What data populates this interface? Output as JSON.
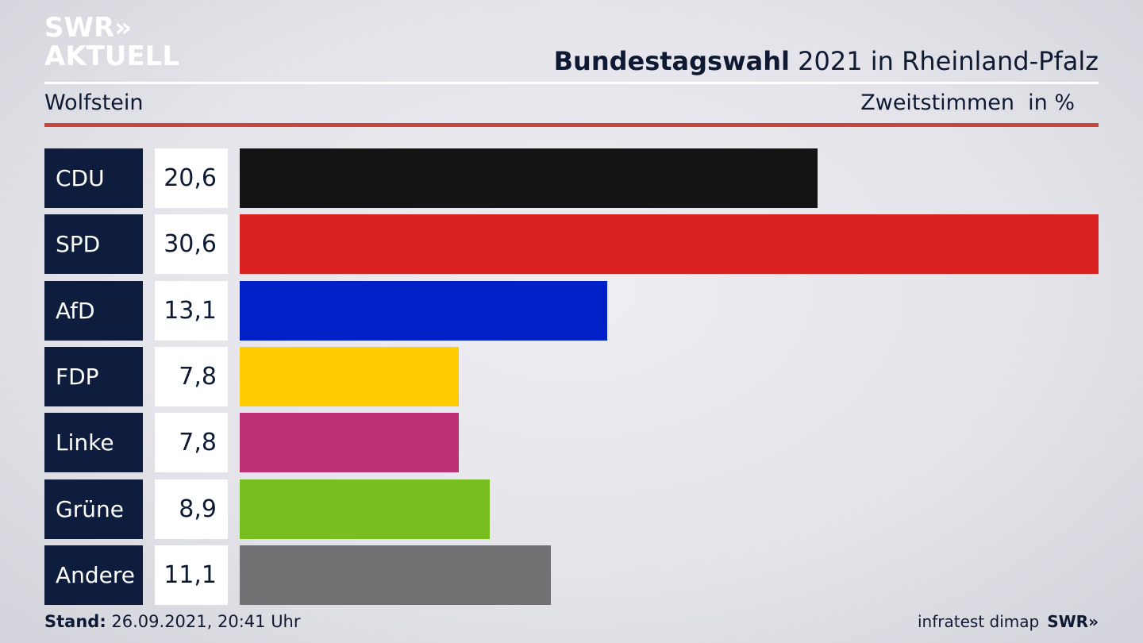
{
  "brand": {
    "logo_line1": "SWR",
    "logo_chevrons": "»",
    "logo_line2": "AKTUELL"
  },
  "header": {
    "title_bold": "Bundestagswahl",
    "title_rest": "2021 in Rheinland-Pfalz",
    "region": "Wolfstein",
    "vote_type": "Zweitstimmen",
    "unit": "in %"
  },
  "colors": {
    "accent_rule": "#c8453c",
    "label_bg": "#0e1c3e"
  },
  "chart_data": {
    "type": "bar",
    "orientation": "horizontal",
    "categories": [
      "CDU",
      "SPD",
      "AfD",
      "FDP",
      "Linke",
      "Grüne",
      "Andere"
    ],
    "values": [
      20.6,
      30.6,
      13.1,
      7.8,
      7.8,
      8.9,
      11.1
    ],
    "value_labels": [
      "20,6",
      "30,6",
      "13,1",
      "7,8",
      "7,8",
      "8,9",
      "11,1"
    ],
    "colors": [
      "#141414",
      "#d92120",
      "#0021c8",
      "#ffcc00",
      "#be3075",
      "#78be1e",
      "#727274"
    ],
    "xlim": [
      0,
      30.6
    ],
    "grid": false,
    "legend": "none"
  },
  "footer": {
    "stand_label": "Stand:",
    "stand_value": "26.09.2021, 20:41 Uhr",
    "source": "infratest dimap",
    "brand_small": "SWR»"
  }
}
